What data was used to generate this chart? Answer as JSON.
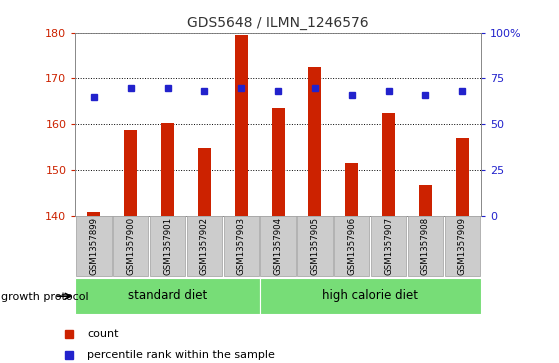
{
  "title": "GDS5648 / ILMN_1246576",
  "samples": [
    "GSM1357899",
    "GSM1357900",
    "GSM1357901",
    "GSM1357902",
    "GSM1357903",
    "GSM1357904",
    "GSM1357905",
    "GSM1357906",
    "GSM1357907",
    "GSM1357908",
    "GSM1357909"
  ],
  "counts": [
    140.8,
    158.8,
    160.3,
    154.8,
    179.5,
    163.5,
    172.5,
    151.5,
    162.5,
    146.8,
    157.0
  ],
  "percentiles": [
    65,
    70,
    70,
    68,
    70,
    68,
    70,
    66,
    68,
    66,
    68
  ],
  "ylim_left": [
    140,
    180
  ],
  "ylim_right": [
    0,
    100
  ],
  "yticks_left": [
    140,
    150,
    160,
    170,
    180
  ],
  "yticks_right": [
    0,
    25,
    50,
    75,
    100
  ],
  "yticklabels_right": [
    "0",
    "25",
    "50",
    "75",
    "100%"
  ],
  "bar_color": "#cc2200",
  "dot_color": "#2222cc",
  "bar_bottom": 140,
  "standard_diet_count": 5,
  "high_calorie_count": 6,
  "standard_diet_label": "standard diet",
  "high_calorie_label": "high calorie diet",
  "group_label": "growth protocol",
  "legend_count_label": "count",
  "legend_percentile_label": "percentile rank within the sample",
  "bg_plot": "#ffffff",
  "group_bg": "#77dd77",
  "tick_bg": "#cccccc",
  "title_color": "#333333",
  "left_tick_color": "#cc2200",
  "right_tick_color": "#2222cc"
}
